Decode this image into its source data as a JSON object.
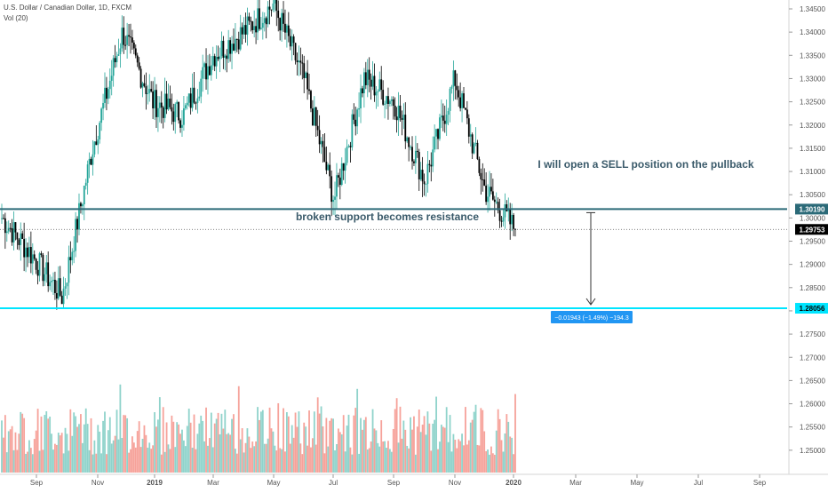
{
  "header": {
    "title": "U.S. Dollar / Canadian Dollar, 1D, FXCM",
    "volume_label": "Vol (20)"
  },
  "annotations": {
    "sell_note": "I will open a SELL position on the pullback",
    "support_note": "broken support becomes resistance",
    "measure_label": "−0.01943 (−1.49%) −194.3"
  },
  "price_badges": {
    "resistance": "1.30190",
    "last": "1.29753",
    "target": "1.28056"
  },
  "colors": {
    "up": "#26a69a",
    "down": "#000000",
    "vol_up": "#8fd3cb",
    "vol_down": "#f6a29a",
    "resistance_line": "#2b6a78",
    "target_line": "#00e5ff",
    "measure_badge": "#2196f3"
  },
  "chart_data": {
    "type": "candlestick",
    "title": "U.S. Dollar / Canadian Dollar, 1D, FXCM",
    "y_ticks": [
      "1.34500",
      "1.34000",
      "1.33500",
      "1.33000",
      "1.32500",
      "1.32000",
      "1.31500",
      "1.31000",
      "1.30500",
      "1.30000",
      "1.29500",
      "1.29000",
      "1.28500",
      "1.28000",
      "1.27500",
      "1.27000",
      "1.26500",
      "1.26000",
      "1.25500",
      "1.25000"
    ],
    "x_ticks": [
      "Sep",
      "Nov",
      "2019",
      "Mar",
      "May",
      "Jul",
      "Sep",
      "Nov",
      "2020",
      "Mar",
      "May",
      "Jul",
      "Sep"
    ],
    "price_range": [
      1.2455,
      1.3495
    ],
    "price_path": [
      {
        "month": "2018-08",
        "close": 1.3
      },
      {
        "month": "2018-09",
        "close": 1.292
      },
      {
        "month": "2018-10",
        "close": 1.283
      },
      {
        "month": "2018-11",
        "close": 1.315
      },
      {
        "month": "2018-12",
        "close": 1.34
      },
      {
        "month": "2019-01",
        "close": 1.325
      },
      {
        "month": "2019-02",
        "close": 1.322
      },
      {
        "month": "2019-03",
        "close": 1.335
      },
      {
        "month": "2019-04",
        "close": 1.34
      },
      {
        "month": "2019-05",
        "close": 1.346
      },
      {
        "month": "2019-06",
        "close": 1.33
      },
      {
        "month": "2019-07",
        "close": 1.304
      },
      {
        "month": "2019-08",
        "close": 1.33
      },
      {
        "month": "2019-09",
        "close": 1.325
      },
      {
        "month": "2019-10",
        "close": 1.308
      },
      {
        "month": "2019-11",
        "close": 1.33
      },
      {
        "month": "2019-12",
        "close": 1.306
      },
      {
        "month": "2020-01",
        "close": 1.2975
      }
    ],
    "levels": {
      "resistance": 1.3019,
      "last": 1.29753,
      "target": 1.28056
    },
    "measure": {
      "change": -0.01943,
      "percent": -1.49,
      "pips": -194.3
    }
  }
}
